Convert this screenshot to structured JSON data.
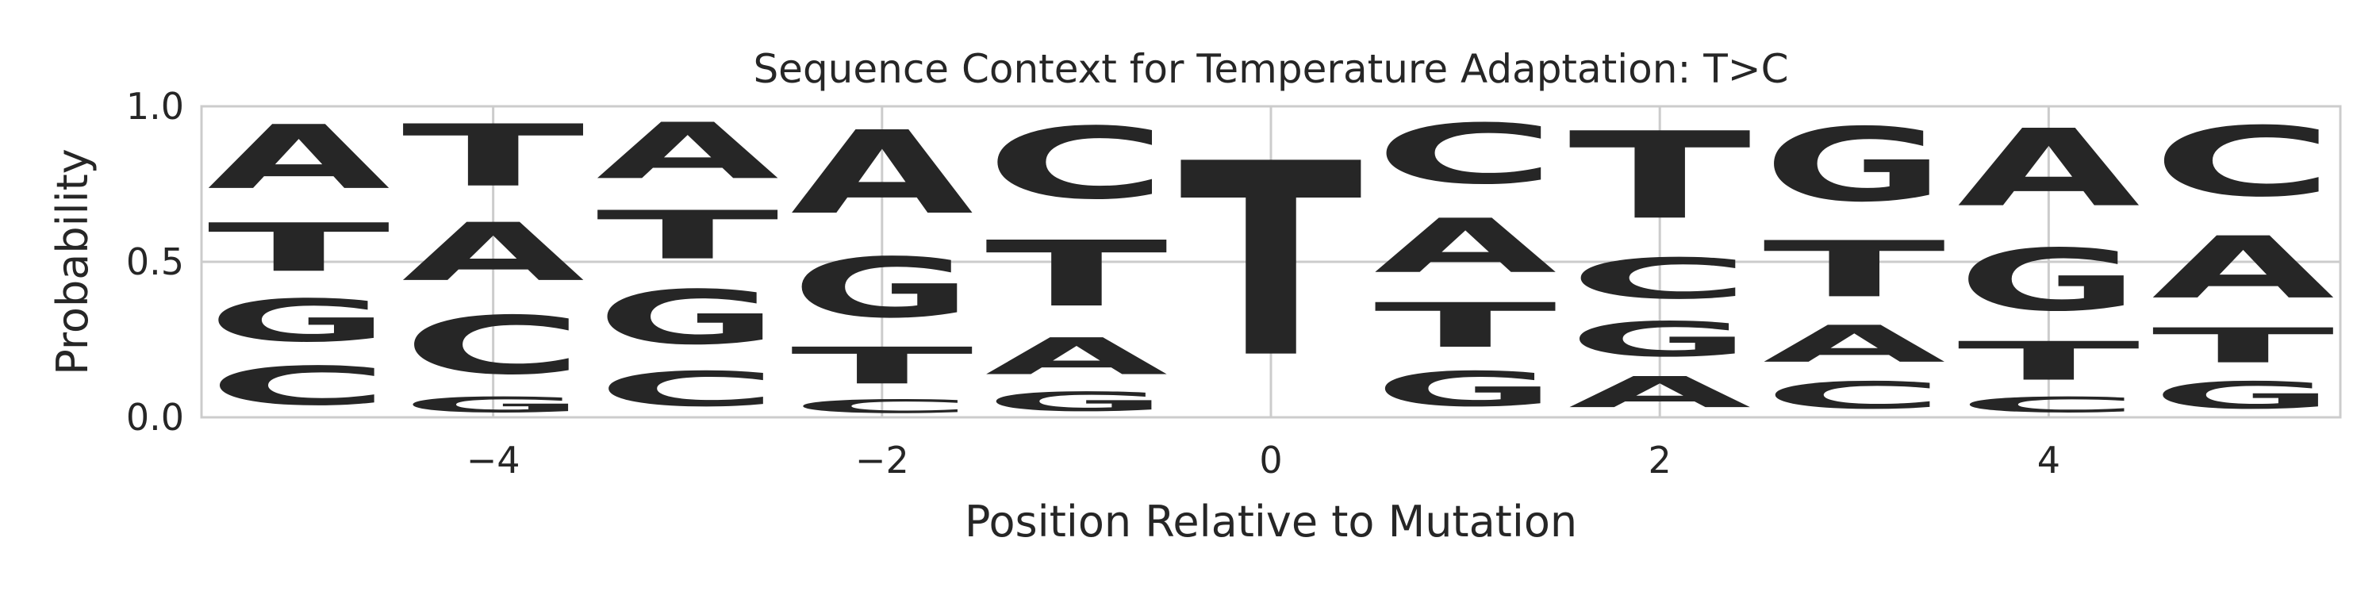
{
  "chart_data": {
    "type": "sequence-logo",
    "title": "Sequence Context for Temperature Adaptation: T>C",
    "xlabel": "Position Relative to Mutation",
    "ylabel": "Probability",
    "xlim": [
      -5.5,
      5.5
    ],
    "ylim": [
      0,
      1.0
    ],
    "xticks": [
      -4,
      -2,
      0,
      2,
      4
    ],
    "xtick_labels": [
      "−4",
      "−2",
      "0",
      "2",
      "4"
    ],
    "yticks": [
      0.0,
      0.5,
      1.0
    ],
    "ytick_labels": [
      "0.0",
      "0.5",
      "1.0"
    ],
    "grid": true,
    "colors": {
      "A": "#008000",
      "C": "#0000ff",
      "G": "#ffa500",
      "T": "#ff0000"
    },
    "positions": [
      {
        "x": -5,
        "stack": [
          {
            "base": "C",
            "value": 0.2
          },
          {
            "base": "G",
            "value": 0.22
          },
          {
            "base": "T",
            "value": 0.25
          },
          {
            "base": "A",
            "value": 0.33
          }
        ]
      },
      {
        "x": -4,
        "stack": [
          {
            "base": "G",
            "value": 0.08
          },
          {
            "base": "C",
            "value": 0.3
          },
          {
            "base": "A",
            "value": 0.3
          },
          {
            "base": "T",
            "value": 0.32
          }
        ]
      },
      {
        "x": -3,
        "stack": [
          {
            "base": "C",
            "value": 0.18
          },
          {
            "base": "G",
            "value": 0.28
          },
          {
            "base": "T",
            "value": 0.25
          },
          {
            "base": "A",
            "value": 0.29
          }
        ]
      },
      {
        "x": -2,
        "stack": [
          {
            "base": "C",
            "value": 0.07
          },
          {
            "base": "T",
            "value": 0.19
          },
          {
            "base": "G",
            "value": 0.31
          },
          {
            "base": "A",
            "value": 0.43
          }
        ]
      },
      {
        "x": -1,
        "stack": [
          {
            "base": "G",
            "value": 0.1
          },
          {
            "base": "A",
            "value": 0.19
          },
          {
            "base": "T",
            "value": 0.34
          },
          {
            "base": "C",
            "value": 0.37
          }
        ]
      },
      {
        "x": 0,
        "stack": [
          {
            "base": "T",
            "value": 1.0
          }
        ]
      },
      {
        "x": 1,
        "stack": [
          {
            "base": "G",
            "value": 0.18
          },
          {
            "base": "T",
            "value": 0.23
          },
          {
            "base": "A",
            "value": 0.28
          },
          {
            "base": "C",
            "value": 0.31
          }
        ]
      },
      {
        "x": 2,
        "stack": [
          {
            "base": "A",
            "value": 0.16
          },
          {
            "base": "G",
            "value": 0.18
          },
          {
            "base": "C",
            "value": 0.21
          },
          {
            "base": "T",
            "value": 0.45
          }
        ]
      },
      {
        "x": 3,
        "stack": [
          {
            "base": "C",
            "value": 0.14
          },
          {
            "base": "A",
            "value": 0.19
          },
          {
            "base": "T",
            "value": 0.29
          },
          {
            "base": "G",
            "value": 0.38
          }
        ]
      },
      {
        "x": 4,
        "stack": [
          {
            "base": "C",
            "value": 0.08
          },
          {
            "base": "T",
            "value": 0.2
          },
          {
            "base": "G",
            "value": 0.32
          },
          {
            "base": "A",
            "value": 0.4
          }
        ]
      },
      {
        "x": 5,
        "stack": [
          {
            "base": "G",
            "value": 0.14
          },
          {
            "base": "T",
            "value": 0.18
          },
          {
            "base": "A",
            "value": 0.32
          },
          {
            "base": "C",
            "value": 0.36
          }
        ]
      }
    ]
  }
}
